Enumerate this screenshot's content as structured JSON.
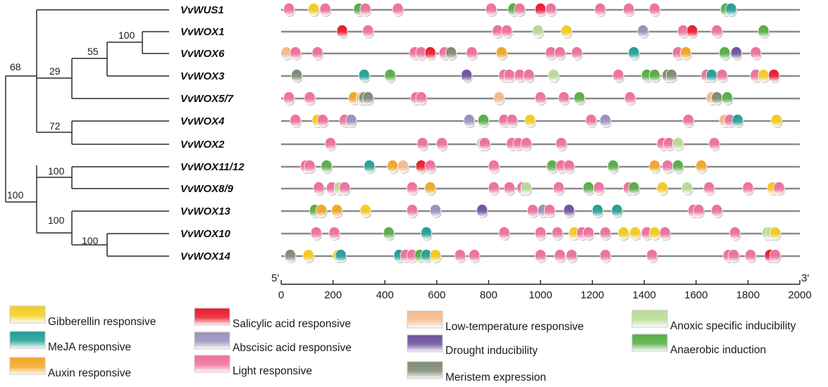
{
  "chart_data": {
    "type": "scatter",
    "title": "",
    "xlabel": "",
    "ylabel": "",
    "axis": {
      "start_label": "5'",
      "end_label": "3'",
      "xlim": [
        0,
        2000
      ],
      "ticks": [
        0,
        200,
        400,
        600,
        800,
        1000,
        1200,
        1400,
        1600,
        1800,
        2000
      ]
    },
    "tree": {
      "bootstrap_values": [
        "100",
        "55",
        "29",
        "68",
        "72",
        "100",
        "100",
        "100",
        "100"
      ]
    },
    "element_types": [
      {
        "id": "gib",
        "label": "Gibberellin responsive",
        "color": "#f5cd1c"
      },
      {
        "id": "meja",
        "label": "MeJA responsive",
        "color": "#1e9e96"
      },
      {
        "id": "aux",
        "label": "Auxin responsive",
        "color": "#f5a623"
      },
      {
        "id": "sal",
        "label": "Salicylic acid responsive",
        "color": "#e8192c"
      },
      {
        "id": "aba",
        "label": "Abscisic acid responsive",
        "color": "#9a8fbe"
      },
      {
        "id": "light",
        "label": "Light responsive",
        "color": "#f06e9c"
      },
      {
        "id": "lowt",
        "label": "Low-temperature responsive",
        "color": "#f7bb8c"
      },
      {
        "id": "drought",
        "label": "Drought inducibility",
        "color": "#6b4f9c"
      },
      {
        "id": "mer",
        "label": "Meristem expression",
        "color": "#7d8a73"
      },
      {
        "id": "anoxic",
        "label": "Anoxic specific inducibility",
        "color": "#b9dc95"
      },
      {
        "id": "anaer",
        "label": "Anaerobic induction",
        "color": "#55ad42"
      }
    ],
    "genes": [
      {
        "name": "VvWUS1",
        "elements": [
          {
            "x": 30,
            "type": "light"
          },
          {
            "x": 125,
            "type": "gib"
          },
          {
            "x": 170,
            "type": "light"
          },
          {
            "x": 300,
            "type": "anaer"
          },
          {
            "x": 325,
            "type": "light"
          },
          {
            "x": 450,
            "type": "light"
          },
          {
            "x": 810,
            "type": "light"
          },
          {
            "x": 895,
            "type": "anaer"
          },
          {
            "x": 920,
            "type": "light"
          },
          {
            "x": 1000,
            "type": "sal"
          },
          {
            "x": 1040,
            "type": "light"
          },
          {
            "x": 1230,
            "type": "light"
          },
          {
            "x": 1340,
            "type": "light"
          },
          {
            "x": 1440,
            "type": "light"
          },
          {
            "x": 1715,
            "type": "anaer"
          },
          {
            "x": 1735,
            "type": "meja"
          }
        ]
      },
      {
        "name": "VvWOX1",
        "elements": [
          {
            "x": 235,
            "type": "sal"
          },
          {
            "x": 335,
            "type": "light"
          },
          {
            "x": 835,
            "type": "light"
          },
          {
            "x": 870,
            "type": "light"
          },
          {
            "x": 990,
            "type": "anoxic"
          },
          {
            "x": 1100,
            "type": "gib"
          },
          {
            "x": 1395,
            "type": "aba"
          },
          {
            "x": 1550,
            "type": "light"
          },
          {
            "x": 1585,
            "type": "sal"
          },
          {
            "x": 1680,
            "type": "light"
          },
          {
            "x": 1860,
            "type": "anaer"
          }
        ]
      },
      {
        "name": "VvWOX6",
        "elements": [
          {
            "x": 20,
            "type": "lowt"
          },
          {
            "x": 55,
            "type": "light"
          },
          {
            "x": 140,
            "type": "light"
          },
          {
            "x": 515,
            "type": "light"
          },
          {
            "x": 540,
            "type": "light"
          },
          {
            "x": 575,
            "type": "sal"
          },
          {
            "x": 630,
            "type": "light"
          },
          {
            "x": 655,
            "type": "mer"
          },
          {
            "x": 735,
            "type": "light"
          },
          {
            "x": 850,
            "type": "aux"
          },
          {
            "x": 1040,
            "type": "light"
          },
          {
            "x": 1075,
            "type": "light"
          },
          {
            "x": 1140,
            "type": "light"
          },
          {
            "x": 1360,
            "type": "meja"
          },
          {
            "x": 1530,
            "type": "light"
          },
          {
            "x": 1560,
            "type": "aux"
          },
          {
            "x": 1710,
            "type": "anaer"
          },
          {
            "x": 1755,
            "type": "drought"
          },
          {
            "x": 1830,
            "type": "light"
          }
        ]
      },
      {
        "name": "VvWOX3",
        "elements": [
          {
            "x": 60,
            "type": "mer"
          },
          {
            "x": 320,
            "type": "meja"
          },
          {
            "x": 420,
            "type": "anaer"
          },
          {
            "x": 715,
            "type": "drought"
          },
          {
            "x": 860,
            "type": "light"
          },
          {
            "x": 880,
            "type": "light"
          },
          {
            "x": 920,
            "type": "light"
          },
          {
            "x": 955,
            "type": "light"
          },
          {
            "x": 1050,
            "type": "anoxic"
          },
          {
            "x": 1300,
            "type": "light"
          },
          {
            "x": 1410,
            "type": "anaer"
          },
          {
            "x": 1440,
            "type": "anaer"
          },
          {
            "x": 1490,
            "type": "mer"
          },
          {
            "x": 1505,
            "type": "mer"
          },
          {
            "x": 1640,
            "type": "light"
          },
          {
            "x": 1660,
            "type": "meja"
          },
          {
            "x": 1700,
            "type": "light"
          },
          {
            "x": 1830,
            "type": "light"
          },
          {
            "x": 1860,
            "type": "gib"
          },
          {
            "x": 1900,
            "type": "sal"
          }
        ]
      },
      {
        "name": "VvWOX5/7",
        "elements": [
          {
            "x": 30,
            "type": "light"
          },
          {
            "x": 110,
            "type": "light"
          },
          {
            "x": 280,
            "type": "aux"
          },
          {
            "x": 310,
            "type": "lowt"
          },
          {
            "x": 320,
            "type": "mer"
          },
          {
            "x": 335,
            "type": "mer"
          },
          {
            "x": 520,
            "type": "light"
          },
          {
            "x": 540,
            "type": "light"
          },
          {
            "x": 840,
            "type": "lowt"
          },
          {
            "x": 1000,
            "type": "light"
          },
          {
            "x": 1090,
            "type": "light"
          },
          {
            "x": 1150,
            "type": "anaer"
          },
          {
            "x": 1345,
            "type": "light"
          },
          {
            "x": 1660,
            "type": "lowt"
          },
          {
            "x": 1680,
            "type": "mer"
          },
          {
            "x": 1720,
            "type": "anaer"
          }
        ]
      },
      {
        "name": "VvWOX4",
        "elements": [
          {
            "x": 55,
            "type": "light"
          },
          {
            "x": 140,
            "type": "gib"
          },
          {
            "x": 160,
            "type": "light"
          },
          {
            "x": 245,
            "type": "light"
          },
          {
            "x": 270,
            "type": "aba"
          },
          {
            "x": 725,
            "type": "aba"
          },
          {
            "x": 780,
            "type": "anaer"
          },
          {
            "x": 860,
            "type": "light"
          },
          {
            "x": 890,
            "type": "light"
          },
          {
            "x": 960,
            "type": "gib"
          },
          {
            "x": 1195,
            "type": "light"
          },
          {
            "x": 1250,
            "type": "aba"
          },
          {
            "x": 1570,
            "type": "light"
          },
          {
            "x": 1710,
            "type": "lowt"
          },
          {
            "x": 1730,
            "type": "light"
          },
          {
            "x": 1760,
            "type": "meja"
          },
          {
            "x": 1910,
            "type": "gib"
          }
        ]
      },
      {
        "name": "VvWOX2",
        "elements": [
          {
            "x": 190,
            "type": "light"
          },
          {
            "x": 545,
            "type": "light"
          },
          {
            "x": 620,
            "type": "light"
          },
          {
            "x": 775,
            "type": "anoxic"
          },
          {
            "x": 785,
            "type": "light"
          },
          {
            "x": 890,
            "type": "light"
          },
          {
            "x": 915,
            "type": "light"
          },
          {
            "x": 945,
            "type": "light"
          },
          {
            "x": 1080,
            "type": "light"
          },
          {
            "x": 1470,
            "type": "light"
          },
          {
            "x": 1495,
            "type": "light"
          },
          {
            "x": 1530,
            "type": "anoxic"
          },
          {
            "x": 1670,
            "type": "light"
          }
        ]
      },
      {
        "name": "VvWOX11/12",
        "elements": [
          {
            "x": 95,
            "type": "light"
          },
          {
            "x": 110,
            "type": "light"
          },
          {
            "x": 175,
            "type": "anaer"
          },
          {
            "x": 340,
            "type": "meja"
          },
          {
            "x": 430,
            "type": "aux"
          },
          {
            "x": 470,
            "type": "lowt"
          },
          {
            "x": 540,
            "type": "sal"
          },
          {
            "x": 575,
            "type": "light"
          },
          {
            "x": 820,
            "type": "light"
          },
          {
            "x": 1045,
            "type": "anaer"
          },
          {
            "x": 1080,
            "type": "light"
          },
          {
            "x": 1110,
            "type": "light"
          },
          {
            "x": 1280,
            "type": "anaer"
          },
          {
            "x": 1440,
            "type": "aux"
          },
          {
            "x": 1490,
            "type": "light"
          },
          {
            "x": 1530,
            "type": "anaer"
          },
          {
            "x": 1620,
            "type": "aux"
          }
        ]
      },
      {
        "name": "VvWOX8/9",
        "elements": [
          {
            "x": 145,
            "type": "light"
          },
          {
            "x": 195,
            "type": "light"
          },
          {
            "x": 225,
            "type": "anoxic"
          },
          {
            "x": 245,
            "type": "light"
          },
          {
            "x": 505,
            "type": "light"
          },
          {
            "x": 575,
            "type": "aux"
          },
          {
            "x": 820,
            "type": "light"
          },
          {
            "x": 880,
            "type": "light"
          },
          {
            "x": 930,
            "type": "light"
          },
          {
            "x": 945,
            "type": "anoxic"
          },
          {
            "x": 1070,
            "type": "light"
          },
          {
            "x": 1185,
            "type": "anaer"
          },
          {
            "x": 1225,
            "type": "light"
          },
          {
            "x": 1340,
            "type": "light"
          },
          {
            "x": 1360,
            "type": "anaer"
          },
          {
            "x": 1470,
            "type": "gib"
          },
          {
            "x": 1565,
            "type": "anoxic"
          },
          {
            "x": 1650,
            "type": "light"
          },
          {
            "x": 1800,
            "type": "light"
          },
          {
            "x": 1895,
            "type": "gib"
          },
          {
            "x": 1920,
            "type": "light"
          }
        ]
      },
      {
        "name": "VvWOX13",
        "elements": [
          {
            "x": 130,
            "type": "anaer"
          },
          {
            "x": 155,
            "type": "aux"
          },
          {
            "x": 215,
            "type": "aux"
          },
          {
            "x": 325,
            "type": "gib"
          },
          {
            "x": 505,
            "type": "light"
          },
          {
            "x": 595,
            "type": "aba"
          },
          {
            "x": 775,
            "type": "drought"
          },
          {
            "x": 970,
            "type": "light"
          },
          {
            "x": 1010,
            "type": "aba"
          },
          {
            "x": 1035,
            "type": "light"
          },
          {
            "x": 1110,
            "type": "drought"
          },
          {
            "x": 1220,
            "type": "meja"
          },
          {
            "x": 1295,
            "type": "meja"
          },
          {
            "x": 1590,
            "type": "light"
          },
          {
            "x": 1610,
            "type": "light"
          },
          {
            "x": 1680,
            "type": "light"
          }
        ]
      },
      {
        "name": "VvWOX10",
        "elements": [
          {
            "x": 135,
            "type": "light"
          },
          {
            "x": 205,
            "type": "light"
          },
          {
            "x": 415,
            "type": "anaer"
          },
          {
            "x": 560,
            "type": "meja"
          },
          {
            "x": 860,
            "type": "light"
          },
          {
            "x": 1000,
            "type": "light"
          },
          {
            "x": 1065,
            "type": "light"
          },
          {
            "x": 1130,
            "type": "gib"
          },
          {
            "x": 1160,
            "type": "light"
          },
          {
            "x": 1185,
            "type": "light"
          },
          {
            "x": 1250,
            "type": "light"
          },
          {
            "x": 1320,
            "type": "gib"
          },
          {
            "x": 1365,
            "type": "gib"
          },
          {
            "x": 1410,
            "type": "light"
          },
          {
            "x": 1440,
            "type": "gib"
          },
          {
            "x": 1480,
            "type": "light"
          },
          {
            "x": 1750,
            "type": "light"
          },
          {
            "x": 1875,
            "type": "anoxic"
          },
          {
            "x": 1890,
            "type": "anoxic"
          },
          {
            "x": 1905,
            "type": "gib"
          }
        ]
      },
      {
        "name": "VvWOX14",
        "elements": [
          {
            "x": 35,
            "type": "mer"
          },
          {
            "x": 105,
            "type": "gib"
          },
          {
            "x": 220,
            "type": "gib"
          },
          {
            "x": 230,
            "type": "meja"
          },
          {
            "x": 455,
            "type": "meja"
          },
          {
            "x": 480,
            "type": "light"
          },
          {
            "x": 505,
            "type": "light"
          },
          {
            "x": 535,
            "type": "anaer"
          },
          {
            "x": 560,
            "type": "meja"
          },
          {
            "x": 595,
            "type": "gib"
          },
          {
            "x": 690,
            "type": "light"
          },
          {
            "x": 745,
            "type": "light"
          },
          {
            "x": 1000,
            "type": "light"
          },
          {
            "x": 1075,
            "type": "light"
          },
          {
            "x": 1120,
            "type": "light"
          },
          {
            "x": 1250,
            "type": "light"
          },
          {
            "x": 1430,
            "type": "light"
          },
          {
            "x": 1725,
            "type": "light"
          },
          {
            "x": 1745,
            "type": "light"
          },
          {
            "x": 1810,
            "type": "light"
          },
          {
            "x": 1885,
            "type": "sal"
          },
          {
            "x": 1905,
            "type": "light"
          }
        ]
      }
    ]
  }
}
